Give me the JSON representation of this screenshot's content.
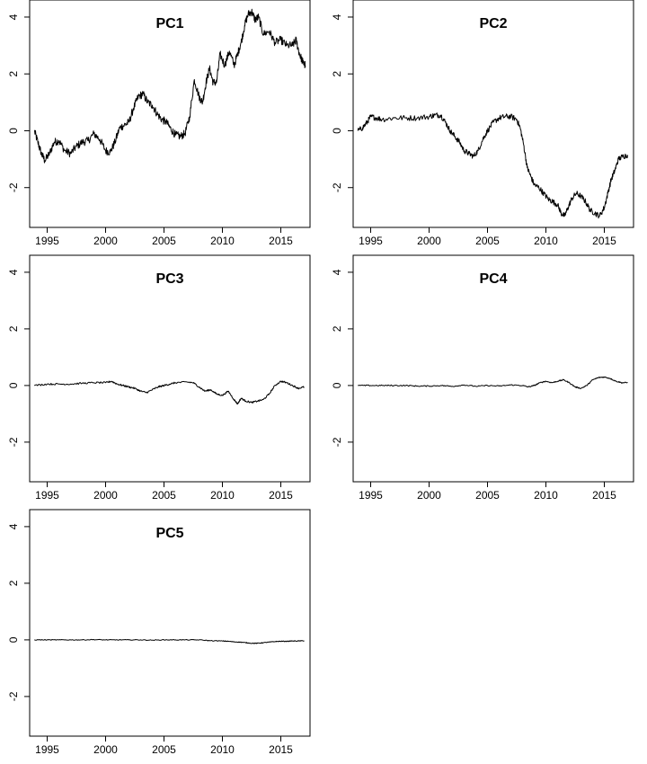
{
  "chart_data": [
    {
      "type": "line",
      "title": "PC1",
      "xlabel": "",
      "ylabel": "",
      "xlim": [
        1993.5,
        2017.5
      ],
      "ylim": [
        -3.4,
        4.6
      ],
      "x_ticks": [
        "1995",
        "2000",
        "2005",
        "2010",
        "2015"
      ],
      "y_ticks": [
        "-2",
        "0",
        "2",
        "4"
      ],
      "grid": false,
      "series": [
        {
          "x": [
            1993.9,
            1994.2,
            1994.5,
            1994.8,
            1995.2,
            1995.6,
            1996.0,
            1996.5,
            1997.0,
            1997.5,
            1998.0,
            1998.5,
            1999.0,
            1999.5,
            2000.0,
            2000.4,
            2000.8,
            2001.2,
            2001.6,
            2002.0,
            2002.4,
            2002.8,
            2003.2,
            2003.6,
            2004.0,
            2004.4,
            2004.8,
            2005.2,
            2005.6,
            2006.0,
            2006.4,
            2006.8,
            2007.2,
            2007.6,
            2008.0,
            2008.3,
            2008.6,
            2008.9,
            2009.2,
            2009.5,
            2009.8,
            2010.2,
            2010.6,
            2011.0,
            2011.3,
            2011.6,
            2011.9,
            2012.2,
            2012.5,
            2012.8,
            2013.1,
            2013.5,
            2014.0,
            2014.5,
            2015.0,
            2015.5,
            2016.0,
            2016.3,
            2016.6,
            2016.9,
            2017.1
          ],
          "y": [
            0.0,
            -0.4,
            -0.8,
            -1.05,
            -0.8,
            -0.4,
            -0.35,
            -0.7,
            -0.8,
            -0.55,
            -0.4,
            -0.35,
            -0.1,
            -0.3,
            -0.7,
            -0.75,
            -0.4,
            0.1,
            0.2,
            0.3,
            0.8,
            1.2,
            1.3,
            1.0,
            0.9,
            0.6,
            0.4,
            0.3,
            0.05,
            -0.15,
            -0.2,
            -0.1,
            0.5,
            1.8,
            1.2,
            1.0,
            1.7,
            2.2,
            1.7,
            1.7,
            2.7,
            2.3,
            2.8,
            2.3,
            2.7,
            3.1,
            3.7,
            4.1,
            4.2,
            3.9,
            4.0,
            3.4,
            3.5,
            3.1,
            3.2,
            3.0,
            3.0,
            3.2,
            2.7,
            2.4,
            2.3
          ]
        }
      ]
    },
    {
      "type": "line",
      "title": "PC2",
      "xlabel": "",
      "ylabel": "",
      "xlim": [
        1993.5,
        2017.5
      ],
      "ylim": [
        -3.4,
        4.6
      ],
      "x_ticks": [
        "1995",
        "2000",
        "2005",
        "2010",
        "2015"
      ],
      "y_ticks": [
        "-2",
        "0",
        "2",
        "4"
      ],
      "grid": false,
      "series": [
        {
          "x": [
            1993.9,
            1994.3,
            1994.7,
            1995.0,
            1995.5,
            1996.0,
            1997.0,
            1998.0,
            1999.0,
            2000.0,
            2000.5,
            2001.0,
            2001.4,
            2001.8,
            2002.2,
            2002.6,
            2003.0,
            2003.4,
            2003.8,
            2004.2,
            2004.6,
            2005.0,
            2005.5,
            2006.0,
            2006.5,
            2007.0,
            2007.5,
            2007.8,
            2008.1,
            2008.4,
            2008.7,
            2009.0,
            2009.4,
            2009.8,
            2010.2,
            2010.6,
            2011.0,
            2011.3,
            2011.6,
            2011.9,
            2012.2,
            2012.6,
            2013.0,
            2013.4,
            2013.8,
            2014.2,
            2014.6,
            2015.0,
            2015.3,
            2015.6,
            2015.9,
            2016.2,
            2016.6,
            2017.0
          ],
          "y": [
            0.0,
            0.1,
            0.3,
            0.5,
            0.45,
            0.4,
            0.45,
            0.45,
            0.45,
            0.5,
            0.55,
            0.55,
            0.3,
            0.0,
            -0.2,
            -0.4,
            -0.7,
            -0.8,
            -0.9,
            -0.7,
            -0.3,
            0.0,
            0.3,
            0.45,
            0.5,
            0.5,
            0.4,
            0.1,
            -0.5,
            -1.3,
            -1.6,
            -1.9,
            -2.0,
            -2.2,
            -2.4,
            -2.5,
            -2.6,
            -2.9,
            -3.0,
            -2.7,
            -2.4,
            -2.2,
            -2.3,
            -2.5,
            -2.8,
            -2.9,
            -3.0,
            -2.7,
            -2.2,
            -1.7,
            -1.4,
            -1.0,
            -0.9,
            -0.85
          ]
        }
      ]
    },
    {
      "type": "line",
      "title": "PC3",
      "xlabel": "",
      "ylabel": "",
      "xlim": [
        1993.5,
        2017.5
      ],
      "ylim": [
        -3.4,
        4.6
      ],
      "x_ticks": [
        "1995",
        "2000",
        "2005",
        "2010",
        "2015"
      ],
      "y_ticks": [
        "-2",
        "0",
        "2",
        "4"
      ],
      "grid": false,
      "series": [
        {
          "x": [
            1993.9,
            1995.0,
            1996.0,
            1997.0,
            1998.0,
            1999.0,
            2000.0,
            2000.5,
            2001.0,
            2001.5,
            2002.0,
            2002.5,
            2003.0,
            2003.5,
            2004.0,
            2004.5,
            2005.0,
            2005.5,
            2006.0,
            2007.0,
            2007.5,
            2008.0,
            2008.5,
            2009.0,
            2009.5,
            2010.0,
            2010.5,
            2011.0,
            2011.3,
            2011.6,
            2012.0,
            2012.5,
            2013.0,
            2013.5,
            2014.0,
            2014.5,
            2015.0,
            2015.5,
            2016.0,
            2016.5,
            2017.0
          ],
          "y": [
            0.0,
            0.05,
            0.05,
            0.05,
            0.08,
            0.1,
            0.1,
            0.15,
            0.05,
            0.0,
            -0.05,
            -0.1,
            -0.2,
            -0.25,
            -0.15,
            -0.05,
            0.0,
            0.05,
            0.1,
            0.12,
            0.1,
            -0.05,
            -0.2,
            -0.15,
            -0.3,
            -0.35,
            -0.2,
            -0.5,
            -0.65,
            -0.45,
            -0.55,
            -0.6,
            -0.55,
            -0.5,
            -0.3,
            0.0,
            0.15,
            0.1,
            0.0,
            -0.1,
            -0.05
          ]
        }
      ]
    },
    {
      "type": "line",
      "title": "PC4",
      "xlabel": "",
      "ylabel": "",
      "xlim": [
        1993.5,
        2017.5
      ],
      "ylim": [
        -3.4,
        4.6
      ],
      "x_ticks": [
        "1995",
        "2000",
        "2005",
        "2010",
        "2015"
      ],
      "y_ticks": [
        "-2",
        "0",
        "2",
        "4"
      ],
      "grid": false,
      "series": [
        {
          "x": [
            1993.9,
            1995.0,
            1996.0,
            1997.0,
            1998.0,
            1999.0,
            2000.0,
            2001.0,
            2002.0,
            2003.0,
            2004.0,
            2005.0,
            2006.0,
            2007.0,
            2008.0,
            2008.5,
            2009.0,
            2009.5,
            2010.0,
            2010.5,
            2011.0,
            2011.5,
            2012.0,
            2012.5,
            2013.0,
            2013.5,
            2014.0,
            2014.5,
            2015.0,
            2015.5,
            2016.0,
            2016.5,
            2017.0
          ],
          "y": [
            0.0,
            0.0,
            0.0,
            0.0,
            0.0,
            -0.02,
            -0.02,
            0.0,
            -0.03,
            0.02,
            -0.03,
            0.0,
            -0.02,
            0.02,
            0.0,
            -0.05,
            0.0,
            0.1,
            0.15,
            0.1,
            0.15,
            0.2,
            0.1,
            -0.05,
            -0.1,
            0.0,
            0.2,
            0.28,
            0.3,
            0.25,
            0.15,
            0.1,
            0.1
          ]
        }
      ]
    },
    {
      "type": "line",
      "title": "PC5",
      "xlabel": "",
      "ylabel": "",
      "xlim": [
        1993.5,
        2017.5
      ],
      "ylim": [
        -3.4,
        4.6
      ],
      "x_ticks": [
        "1995",
        "2000",
        "2005",
        "2010",
        "2015"
      ],
      "y_ticks": [
        "-2",
        "0",
        "2",
        "4"
      ],
      "grid": false,
      "series": [
        {
          "x": [
            1993.9,
            1995.0,
            1996.0,
            1997.0,
            1998.0,
            1999.0,
            2000.0,
            2001.0,
            2002.0,
            2003.0,
            2004.0,
            2005.0,
            2006.0,
            2007.0,
            2008.0,
            2009.0,
            2010.0,
            2010.5,
            2011.0,
            2011.5,
            2012.0,
            2012.5,
            2013.0,
            2013.5,
            2014.0,
            2014.5,
            2015.0,
            2015.5,
            2016.0,
            2016.5,
            2017.0
          ],
          "y": [
            0.0,
            0.0,
            0.0,
            0.0,
            0.0,
            0.01,
            0.0,
            0.0,
            0.0,
            0.0,
            -0.01,
            0.0,
            0.0,
            0.0,
            0.0,
            -0.03,
            -0.04,
            -0.05,
            -0.07,
            -0.08,
            -0.1,
            -0.12,
            -0.12,
            -0.1,
            -0.08,
            -0.06,
            -0.05,
            -0.05,
            -0.04,
            -0.04,
            -0.03
          ]
        }
      ]
    }
  ]
}
